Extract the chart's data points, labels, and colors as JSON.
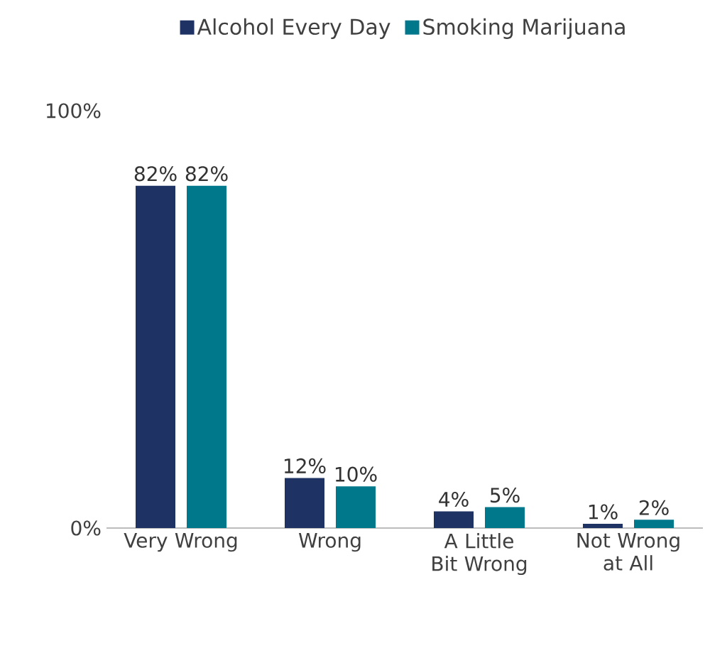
{
  "chart_data": {
    "type": "bar",
    "categories": [
      "Very Wrong",
      "Wrong",
      "A Little Bit Wrong",
      "Not Wrong at All"
    ],
    "series": [
      {
        "name": "Alcohol Every Day",
        "color": "#1f3264",
        "values": [
          82,
          12,
          4,
          1
        ],
        "value_labels": [
          "82%",
          "12%",
          "4%",
          "1%"
        ]
      },
      {
        "name": "Smoking Marijuana",
        "color": "#00788c",
        "values": [
          82,
          10,
          5,
          2
        ],
        "value_labels": [
          "82%",
          "10%",
          "5%",
          "2%"
        ]
      }
    ],
    "ylim": [
      0,
      100
    ],
    "yticks": [
      {
        "value": 0,
        "label": "0%"
      },
      {
        "value": 100,
        "label": "100%"
      }
    ],
    "grid": false,
    "legend": "top"
  }
}
